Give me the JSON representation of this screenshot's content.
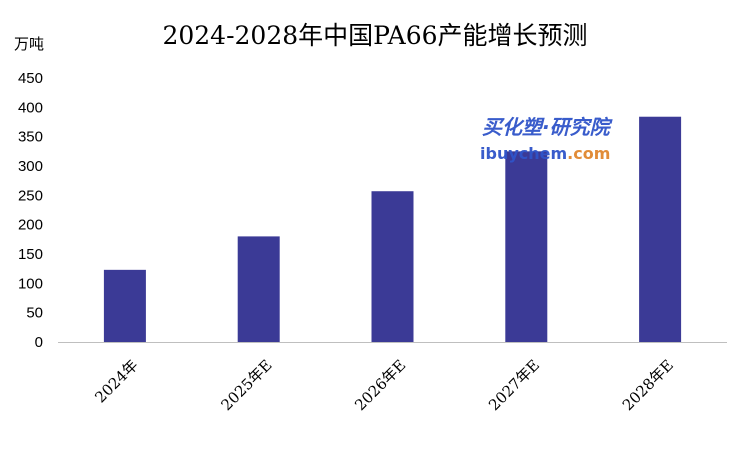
{
  "chart_data": {
    "type": "bar",
    "title": "2024-2028年中国PA66产能增长预测",
    "unit_label": "万吨",
    "categories": [
      "2024年",
      "2025年E",
      "2026年E",
      "2027年E",
      "2028年E"
    ],
    "values": [
      123,
      180,
      257,
      325,
      384
    ],
    "ylim": [
      0,
      450
    ],
    "yticks": [
      "0",
      "50",
      "100",
      "150",
      "200",
      "250",
      "300",
      "350",
      "400",
      "450"
    ],
    "grid": false,
    "legend": "none",
    "bar_color": "#3b3a96"
  },
  "watermark": {
    "brand": "买化塑·研究院",
    "url_part1": "ibuychem",
    "url_part2": ".com",
    "brand_color": "#2f54c9",
    "url_color1": "#2f54c9",
    "url_color2": "#e0862e"
  }
}
